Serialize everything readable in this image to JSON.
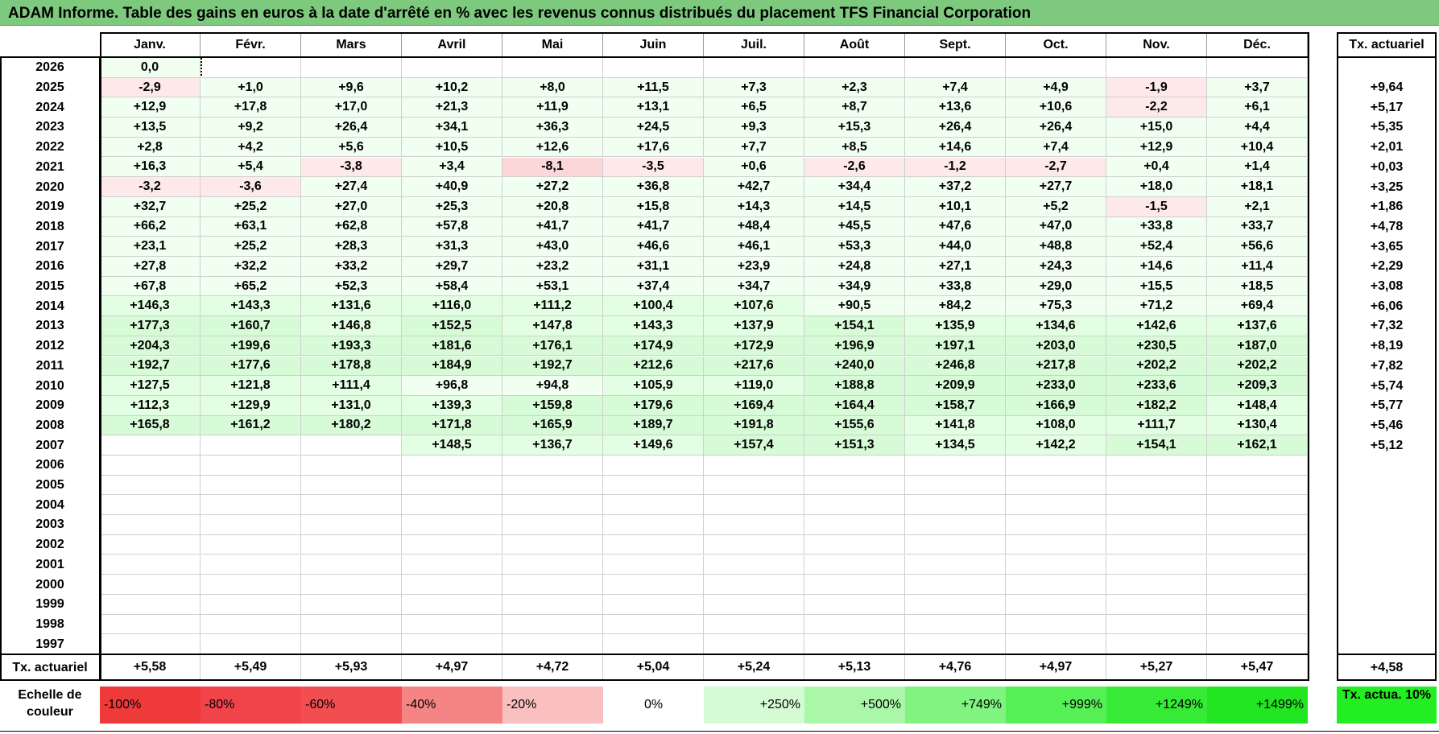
{
  "title": "ADAM Informe. Table des gains en euros à la date d'arrêté en % avec les revenus connus distribués du placement TFS Financial Corporation",
  "months": [
    "Janv.",
    "Févr.",
    "Mars",
    "Avril",
    "Mai",
    "Juin",
    "Juil.",
    "Août",
    "Sept.",
    "Oct.",
    "Nov.",
    "Déc."
  ],
  "actuarial_header": "Tx. actuariel",
  "rows": [
    {
      "year": "2026",
      "values": [
        "0,0",
        "",
        "",
        "",
        "",
        "",
        "",
        "",
        "",
        "",
        "",
        ""
      ],
      "rate": ""
    },
    {
      "year": "2025",
      "values": [
        "-2,9",
        "+1,0",
        "+9,6",
        "+10,2",
        "+8,0",
        "+11,5",
        "+7,3",
        "+2,3",
        "+7,4",
        "+4,9",
        "-1,9",
        "+3,7"
      ],
      "rate": "+9,64"
    },
    {
      "year": "2024",
      "values": [
        "+12,9",
        "+17,8",
        "+17,0",
        "+21,3",
        "+11,9",
        "+13,1",
        "+6,5",
        "+8,7",
        "+13,6",
        "+10,6",
        "-2,2",
        "+6,1"
      ],
      "rate": "+5,17"
    },
    {
      "year": "2023",
      "values": [
        "+13,5",
        "+9,2",
        "+26,4",
        "+34,1",
        "+36,3",
        "+24,5",
        "+9,3",
        "+15,3",
        "+26,4",
        "+26,4",
        "+15,0",
        "+4,4"
      ],
      "rate": "+5,35"
    },
    {
      "year": "2022",
      "values": [
        "+2,8",
        "+4,2",
        "+5,6",
        "+10,5",
        "+12,6",
        "+17,6",
        "+7,7",
        "+8,5",
        "+14,6",
        "+7,4",
        "+12,9",
        "+10,4"
      ],
      "rate": "+2,01"
    },
    {
      "year": "2021",
      "values": [
        "+16,3",
        "+5,4",
        "-3,8",
        "+3,4",
        "-8,1",
        "-3,5",
        "+0,6",
        "-2,6",
        "-1,2",
        "-2,7",
        "+0,4",
        "+1,4"
      ],
      "rate": "+0,03"
    },
    {
      "year": "2020",
      "values": [
        "-3,2",
        "-3,6",
        "+27,4",
        "+40,9",
        "+27,2",
        "+36,8",
        "+42,7",
        "+34,4",
        "+37,2",
        "+27,7",
        "+18,0",
        "+18,1"
      ],
      "rate": "+3,25"
    },
    {
      "year": "2019",
      "values": [
        "+32,7",
        "+25,2",
        "+27,0",
        "+25,3",
        "+20,8",
        "+15,8",
        "+14,3",
        "+14,5",
        "+10,1",
        "+5,2",
        "-1,5",
        "+2,1"
      ],
      "rate": "+1,86"
    },
    {
      "year": "2018",
      "values": [
        "+66,2",
        "+63,1",
        "+62,8",
        "+57,8",
        "+41,7",
        "+41,7",
        "+48,4",
        "+45,5",
        "+47,6",
        "+47,0",
        "+33,8",
        "+33,7"
      ],
      "rate": "+4,78"
    },
    {
      "year": "2017",
      "values": [
        "+23,1",
        "+25,2",
        "+28,3",
        "+31,3",
        "+43,0",
        "+46,6",
        "+46,1",
        "+53,3",
        "+44,0",
        "+48,8",
        "+52,4",
        "+56,6"
      ],
      "rate": "+3,65"
    },
    {
      "year": "2016",
      "values": [
        "+27,8",
        "+32,2",
        "+33,2",
        "+29,7",
        "+23,2",
        "+31,1",
        "+23,9",
        "+24,8",
        "+27,1",
        "+24,3",
        "+14,6",
        "+11,4"
      ],
      "rate": "+2,29"
    },
    {
      "year": "2015",
      "values": [
        "+67,8",
        "+65,2",
        "+52,3",
        "+58,4",
        "+53,1",
        "+37,4",
        "+34,7",
        "+34,9",
        "+33,8",
        "+29,0",
        "+15,5",
        "+18,5"
      ],
      "rate": "+3,08"
    },
    {
      "year": "2014",
      "values": [
        "+146,3",
        "+143,3",
        "+131,6",
        "+116,0",
        "+111,2",
        "+100,4",
        "+107,6",
        "+90,5",
        "+84,2",
        "+75,3",
        "+71,2",
        "+69,4"
      ],
      "rate": "+6,06"
    },
    {
      "year": "2013",
      "values": [
        "+177,3",
        "+160,7",
        "+146,8",
        "+152,5",
        "+147,8",
        "+143,3",
        "+137,9",
        "+154,1",
        "+135,9",
        "+134,6",
        "+142,6",
        "+137,6"
      ],
      "rate": "+7,32"
    },
    {
      "year": "2012",
      "values": [
        "+204,3",
        "+199,6",
        "+193,3",
        "+181,6",
        "+176,1",
        "+174,9",
        "+172,9",
        "+196,9",
        "+197,1",
        "+203,0",
        "+230,5",
        "+187,0"
      ],
      "rate": "+8,19"
    },
    {
      "year": "2011",
      "values": [
        "+192,7",
        "+177,6",
        "+178,8",
        "+184,9",
        "+192,7",
        "+212,6",
        "+217,6",
        "+240,0",
        "+246,8",
        "+217,8",
        "+202,2",
        "+202,2"
      ],
      "rate": "+7,82"
    },
    {
      "year": "2010",
      "values": [
        "+127,5",
        "+121,8",
        "+111,4",
        "+96,8",
        "+94,8",
        "+105,9",
        "+119,0",
        "+188,8",
        "+209,9",
        "+233,0",
        "+233,6",
        "+209,3"
      ],
      "rate": "+5,74"
    },
    {
      "year": "2009",
      "values": [
        "+112,3",
        "+129,9",
        "+131,0",
        "+139,3",
        "+159,8",
        "+179,6",
        "+169,4",
        "+164,4",
        "+158,7",
        "+166,9",
        "+182,2",
        "+148,4"
      ],
      "rate": "+5,77"
    },
    {
      "year": "2008",
      "values": [
        "+165,8",
        "+161,2",
        "+180,2",
        "+171,8",
        "+165,9",
        "+189,7",
        "+191,8",
        "+155,6",
        "+141,8",
        "+108,0",
        "+111,7",
        "+130,4"
      ],
      "rate": "+5,46"
    },
    {
      "year": "2007",
      "values": [
        "",
        "",
        "",
        "+148,5",
        "+136,7",
        "+149,6",
        "+157,4",
        "+151,3",
        "+134,5",
        "+142,2",
        "+154,1",
        "+162,1"
      ],
      "rate": "+5,12"
    },
    {
      "year": "2006",
      "values": [
        "",
        "",
        "",
        "",
        "",
        "",
        "",
        "",
        "",
        "",
        "",
        ""
      ],
      "rate": ""
    },
    {
      "year": "2005",
      "values": [
        "",
        "",
        "",
        "",
        "",
        "",
        "",
        "",
        "",
        "",
        "",
        ""
      ],
      "rate": ""
    },
    {
      "year": "2004",
      "values": [
        "",
        "",
        "",
        "",
        "",
        "",
        "",
        "",
        "",
        "",
        "",
        ""
      ],
      "rate": ""
    },
    {
      "year": "2003",
      "values": [
        "",
        "",
        "",
        "",
        "",
        "",
        "",
        "",
        "",
        "",
        "",
        ""
      ],
      "rate": ""
    },
    {
      "year": "2002",
      "values": [
        "",
        "",
        "",
        "",
        "",
        "",
        "",
        "",
        "",
        "",
        "",
        ""
      ],
      "rate": ""
    },
    {
      "year": "2001",
      "values": [
        "",
        "",
        "",
        "",
        "",
        "",
        "",
        "",
        "",
        "",
        "",
        ""
      ],
      "rate": ""
    },
    {
      "year": "2000",
      "values": [
        "",
        "",
        "",
        "",
        "",
        "",
        "",
        "",
        "",
        "",
        "",
        ""
      ],
      "rate": ""
    },
    {
      "year": "1999",
      "values": [
        "",
        "",
        "",
        "",
        "",
        "",
        "",
        "",
        "",
        "",
        "",
        ""
      ],
      "rate": ""
    },
    {
      "year": "1998",
      "values": [
        "",
        "",
        "",
        "",
        "",
        "",
        "",
        "",
        "",
        "",
        "",
        ""
      ],
      "rate": ""
    },
    {
      "year": "1997",
      "values": [
        "",
        "",
        "",
        "",
        "",
        "",
        "",
        "",
        "",
        "",
        "",
        ""
      ],
      "rate": ""
    }
  ],
  "footer": {
    "label": "Tx. actuariel",
    "values": [
      "+5,58",
      "+5,49",
      "+5,93",
      "+4,97",
      "+4,72",
      "+5,04",
      "+5,24",
      "+5,13",
      "+4,76",
      "+4,97",
      "+5,27",
      "+5,47"
    ],
    "overall": "+4,58"
  },
  "legend": {
    "label": "Echelle de couleur",
    "scale": [
      {
        "label": "-100%",
        "color": "#ee3a3a"
      },
      {
        "label": "-80%",
        "color": "#f0444a"
      },
      {
        "label": "-60%",
        "color": "#f24e52"
      },
      {
        "label": "-40%",
        "color": "#f58585"
      },
      {
        "label": "-20%",
        "color": "#fac0c0"
      },
      {
        "label": "0%",
        "color": "#ffffff"
      },
      {
        "label": "+250%",
        "color": "#d4fbd4"
      },
      {
        "label": "+500%",
        "color": "#aaf7aa"
      },
      {
        "label": "+749%",
        "color": "#80f380"
      },
      {
        "label": "+999%",
        "color": "#56ef56"
      },
      {
        "label": "+1249%",
        "color": "#36ea36"
      },
      {
        "label": "+1499%",
        "color": "#22e622"
      }
    ],
    "actuarial_scale": {
      "label": "Tx. actua. 10%",
      "color": "#22ee22"
    }
  }
}
